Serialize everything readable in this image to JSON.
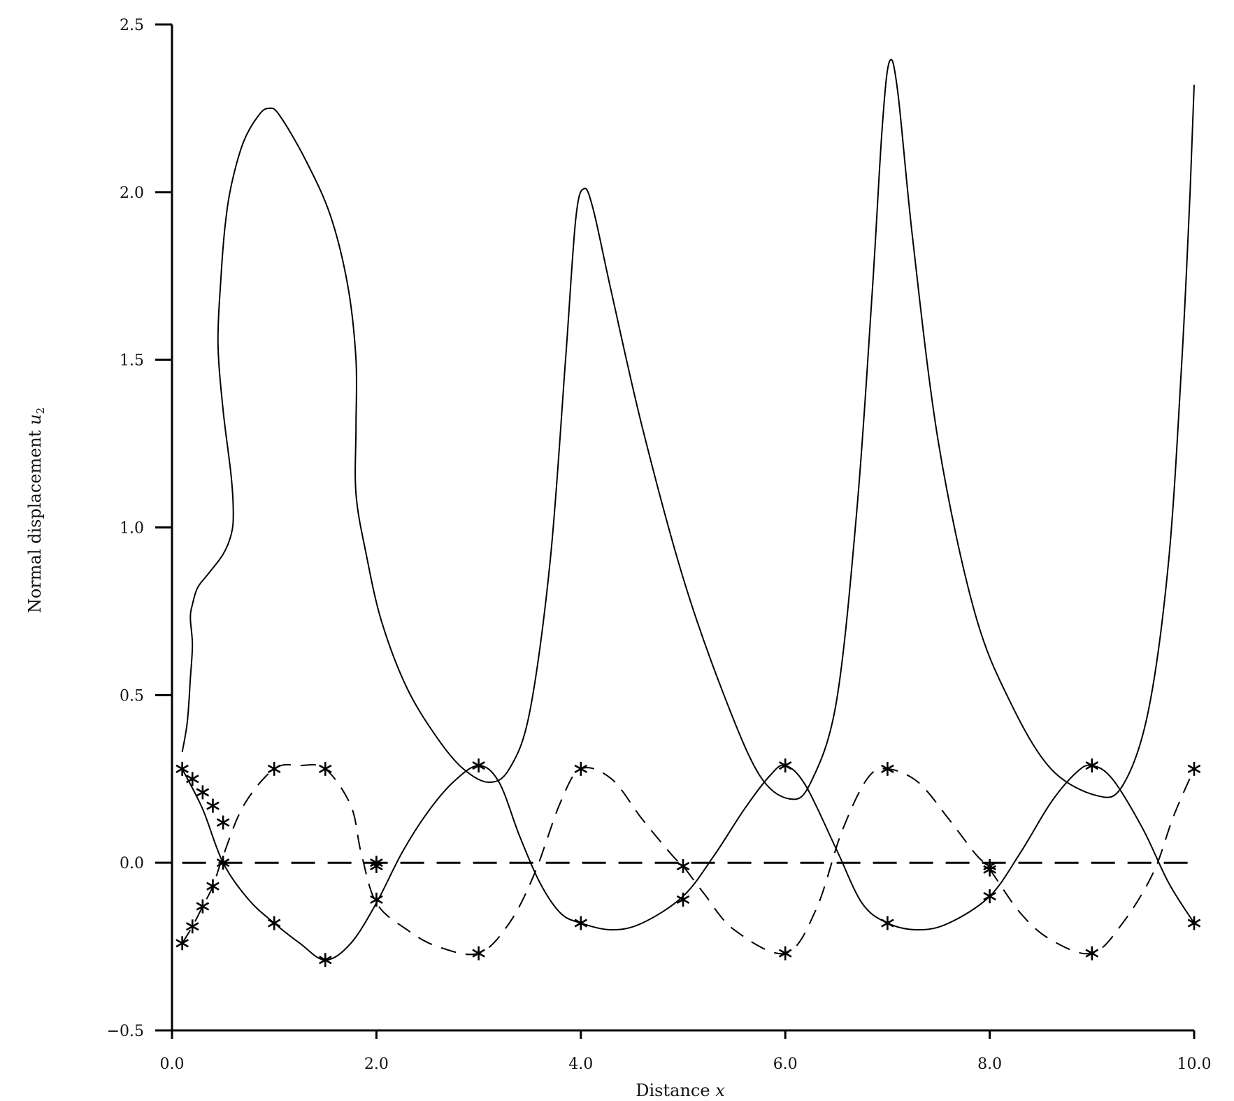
{
  "chart_data": {
    "type": "line",
    "title": "",
    "xlabel": "Distance",
    "xlabel_var": "x",
    "ylabel": "Normal displacement",
    "ylabel_var": "u",
    "ylabel_sub": "2",
    "xlim": [
      0,
      10
    ],
    "ylim": [
      -0.5,
      2.5
    ],
    "grid": false,
    "legend": "none",
    "x_ticks": [
      0,
      2,
      4,
      6,
      8,
      10
    ],
    "x_tick_labels": [
      "0.0",
      "2.0",
      "4.0",
      "6.0",
      "8.0",
      "10.0"
    ],
    "y_ticks": [
      -0.5,
      0,
      0.5,
      1,
      1.5,
      2,
      2.5
    ],
    "y_tick_labels": [
      "−0.5",
      "0.0",
      "0.5",
      "1.0",
      "1.5",
      "2.0",
      "2.5"
    ],
    "series": [
      {
        "style": "solid",
        "points": [
          [
            0.1,
            0.33
          ],
          [
            0.15,
            0.42
          ],
          [
            0.18,
            0.55
          ],
          [
            0.2,
            0.65
          ],
          [
            0.18,
            0.73
          ],
          [
            0.2,
            0.77
          ],
          [
            0.25,
            0.82
          ],
          [
            0.35,
            0.86
          ],
          [
            0.5,
            0.92
          ],
          [
            0.58,
            0.98
          ],
          [
            0.6,
            1.04
          ],
          [
            0.58,
            1.15
          ],
          [
            0.5,
            1.35
          ],
          [
            0.45,
            1.55
          ],
          [
            0.48,
            1.75
          ],
          [
            0.52,
            1.9
          ],
          [
            0.58,
            2.02
          ],
          [
            0.7,
            2.15
          ],
          [
            0.85,
            2.23
          ],
          [
            0.95,
            2.25
          ],
          [
            1.05,
            2.23
          ],
          [
            1.3,
            2.1
          ],
          [
            1.55,
            1.93
          ],
          [
            1.72,
            1.72
          ],
          [
            1.8,
            1.5
          ],
          [
            1.8,
            1.3
          ],
          [
            1.8,
            1.1
          ],
          [
            1.9,
            0.92
          ],
          [
            2.05,
            0.72
          ],
          [
            2.3,
            0.52
          ],
          [
            2.6,
            0.37
          ],
          [
            2.85,
            0.28
          ],
          [
            3.1,
            0.24
          ],
          [
            3.3,
            0.28
          ],
          [
            3.5,
            0.45
          ],
          [
            3.7,
            0.9
          ],
          [
            3.85,
            1.5
          ],
          [
            3.95,
            1.92
          ],
          [
            4.03,
            2.01
          ],
          [
            4.12,
            1.95
          ],
          [
            4.3,
            1.7
          ],
          [
            4.6,
            1.3
          ],
          [
            5.0,
            0.85
          ],
          [
            5.4,
            0.5
          ],
          [
            5.75,
            0.26
          ],
          [
            6.05,
            0.19
          ],
          [
            6.25,
            0.24
          ],
          [
            6.5,
            0.48
          ],
          [
            6.7,
            1.05
          ],
          [
            6.85,
            1.7
          ],
          [
            6.95,
            2.2
          ],
          [
            7.02,
            2.39
          ],
          [
            7.1,
            2.3
          ],
          [
            7.25,
            1.85
          ],
          [
            7.5,
            1.25
          ],
          [
            7.85,
            0.75
          ],
          [
            8.2,
            0.48
          ],
          [
            8.6,
            0.28
          ],
          [
            9.05,
            0.2
          ],
          [
            9.3,
            0.23
          ],
          [
            9.55,
            0.45
          ],
          [
            9.75,
            0.9
          ],
          [
            9.88,
            1.5
          ],
          [
            9.96,
            2.0
          ],
          [
            10.0,
            2.32
          ]
        ]
      },
      {
        "style": "solid",
        "points": [
          [
            0.1,
            0.28
          ],
          [
            0.3,
            0.16
          ],
          [
            0.5,
            0.0
          ],
          [
            0.75,
            -0.11
          ],
          [
            1.0,
            -0.18
          ],
          [
            1.25,
            -0.24
          ],
          [
            1.5,
            -0.29
          ],
          [
            1.75,
            -0.24
          ],
          [
            2.0,
            -0.12
          ],
          [
            2.25,
            0.03
          ],
          [
            2.5,
            0.15
          ],
          [
            2.75,
            0.24
          ],
          [
            3.0,
            0.29
          ],
          [
            3.2,
            0.24
          ],
          [
            3.4,
            0.08
          ],
          [
            3.6,
            -0.06
          ],
          [
            3.8,
            -0.15
          ],
          [
            4.0,
            -0.18
          ],
          [
            4.3,
            -0.2
          ],
          [
            4.6,
            -0.18
          ],
          [
            5.0,
            -0.1
          ],
          [
            5.3,
            0.02
          ],
          [
            5.6,
            0.16
          ],
          [
            5.85,
            0.26
          ],
          [
            6.0,
            0.29
          ],
          [
            6.2,
            0.23
          ],
          [
            6.5,
            0.04
          ],
          [
            6.75,
            -0.12
          ],
          [
            7.0,
            -0.18
          ],
          [
            7.3,
            -0.2
          ],
          [
            7.6,
            -0.18
          ],
          [
            8.0,
            -0.1
          ],
          [
            8.3,
            0.03
          ],
          [
            8.6,
            0.18
          ],
          [
            8.85,
            0.27
          ],
          [
            9.0,
            0.29
          ],
          [
            9.2,
            0.25
          ],
          [
            9.5,
            0.1
          ],
          [
            9.75,
            -0.06
          ],
          [
            10.0,
            -0.18
          ]
        ]
      },
      {
        "style": "dashed",
        "points": [
          [
            0.1,
            -0.24
          ],
          [
            0.2,
            -0.19
          ],
          [
            0.3,
            -0.13
          ],
          [
            0.4,
            -0.07
          ],
          [
            0.5,
            0.02
          ],
          [
            0.7,
            0.17
          ],
          [
            1.0,
            0.28
          ],
          [
            1.25,
            0.29
          ],
          [
            1.5,
            0.28
          ],
          [
            1.75,
            0.17
          ],
          [
            1.85,
            0.03
          ],
          [
            2.0,
            -0.12
          ],
          [
            2.3,
            -0.2
          ],
          [
            2.6,
            -0.25
          ],
          [
            3.0,
            -0.27
          ],
          [
            3.3,
            -0.18
          ],
          [
            3.55,
            -0.03
          ],
          [
            3.8,
            0.18
          ],
          [
            4.0,
            0.28
          ],
          [
            4.3,
            0.25
          ],
          [
            4.6,
            0.13
          ],
          [
            4.9,
            0.02
          ],
          [
            5.0,
            -0.01
          ],
          [
            5.2,
            -0.09
          ],
          [
            5.5,
            -0.2
          ],
          [
            6.0,
            -0.27
          ],
          [
            6.3,
            -0.14
          ],
          [
            6.55,
            0.09
          ],
          [
            6.8,
            0.25
          ],
          [
            7.0,
            0.28
          ],
          [
            7.3,
            0.24
          ],
          [
            7.6,
            0.13
          ],
          [
            7.85,
            0.03
          ],
          [
            8.0,
            -0.02
          ],
          [
            8.3,
            -0.15
          ],
          [
            8.6,
            -0.23
          ],
          [
            9.0,
            -0.27
          ],
          [
            9.3,
            -0.18
          ],
          [
            9.6,
            -0.03
          ],
          [
            9.8,
            0.14
          ],
          [
            10.0,
            0.28
          ]
        ]
      },
      {
        "style": "dashed",
        "points": [
          [
            0.1,
            0.0
          ],
          [
            2.0,
            0.0
          ],
          [
            4.0,
            0.0
          ],
          [
            6.0,
            0.0
          ],
          [
            8.0,
            0.0
          ],
          [
            10.0,
            0.0
          ]
        ]
      }
    ],
    "markers": [
      [
        0.1,
        0.28
      ],
      [
        0.2,
        0.25
      ],
      [
        0.3,
        0.21
      ],
      [
        0.4,
        0.17
      ],
      [
        0.5,
        0.12
      ],
      [
        0.1,
        -0.24
      ],
      [
        0.2,
        -0.19
      ],
      [
        0.3,
        -0.13
      ],
      [
        0.4,
        -0.07
      ],
      [
        0.5,
        0.0
      ],
      [
        1.0,
        0.28
      ],
      [
        1.5,
        0.28
      ],
      [
        1.0,
        -0.18
      ],
      [
        1.5,
        -0.29
      ],
      [
        2.0,
        0.0
      ],
      [
        2.0,
        -0.01
      ],
      [
        2.0,
        -0.11
      ],
      [
        3.0,
        0.29
      ],
      [
        3.0,
        -0.27
      ],
      [
        4.0,
        0.28
      ],
      [
        4.0,
        -0.18
      ],
      [
        5.0,
        -0.01
      ],
      [
        5.0,
        -0.11
      ],
      [
        6.0,
        0.29
      ],
      [
        6.0,
        -0.27
      ],
      [
        7.0,
        0.28
      ],
      [
        7.0,
        -0.18
      ],
      [
        8.0,
        -0.01
      ],
      [
        8.0,
        -0.02
      ],
      [
        8.0,
        -0.1
      ],
      [
        9.0,
        0.29
      ],
      [
        9.0,
        -0.27
      ],
      [
        10.0,
        0.28
      ],
      [
        10.0,
        -0.18
      ]
    ]
  }
}
